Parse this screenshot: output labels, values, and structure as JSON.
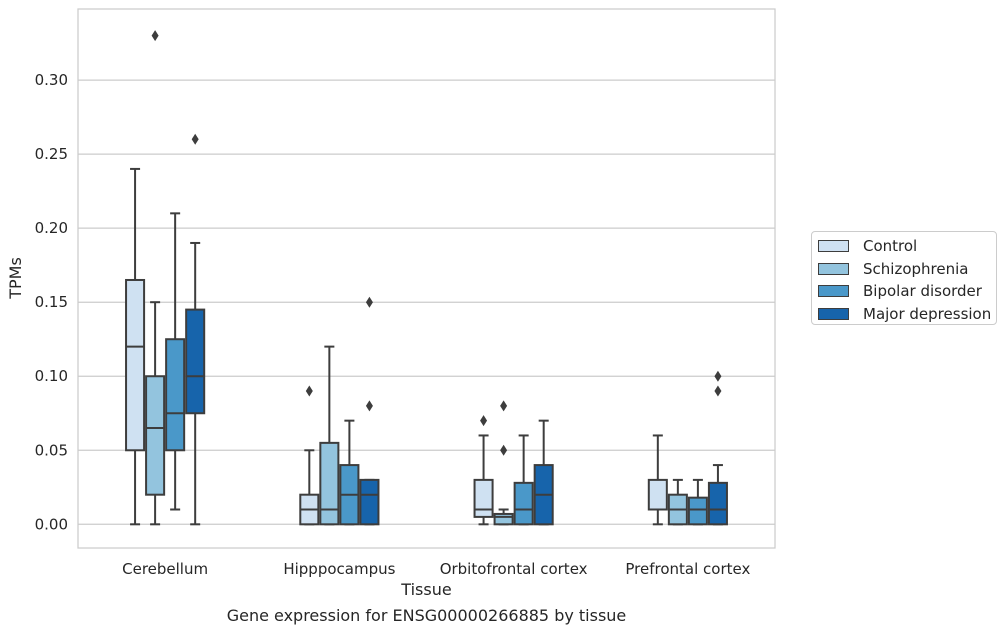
{
  "chart_data": {
    "type": "boxplot",
    "xlabel": "Tissue",
    "ylabel": "TPMs",
    "ylim": [
      -0.016,
      0.348
    ],
    "yticks": [
      "0.00",
      "0.05",
      "0.10",
      "0.15",
      "0.20",
      "0.25",
      "0.30"
    ],
    "grid": "horizontal",
    "legend_placement": "right",
    "categories": [
      "Cerebellum",
      "Hipppocampus",
      "Orbitofrontal cortex",
      "Prefrontal cortex"
    ],
    "series": [
      {
        "name": "Control",
        "color": "#cfe1f2",
        "boxes": [
          {
            "whisker_low": 0.0,
            "q1": 0.05,
            "median": 0.12,
            "q3": 0.165,
            "whisker_high": 0.24,
            "outliers": []
          },
          {
            "whisker_low": 0.0,
            "q1": 0.0,
            "median": 0.01,
            "q3": 0.02,
            "whisker_high": 0.05,
            "outliers": [
              0.09
            ]
          },
          {
            "whisker_low": 0.0,
            "q1": 0.005,
            "median": 0.01,
            "q3": 0.03,
            "whisker_high": 0.06,
            "outliers": [
              0.07
            ]
          },
          {
            "whisker_low": 0.0,
            "q1": 0.01,
            "median": 0.01,
            "q3": 0.03,
            "whisker_high": 0.06,
            "outliers": []
          }
        ]
      },
      {
        "name": "Schizophrenia",
        "color": "#93c4de",
        "boxes": [
          {
            "whisker_low": 0.0,
            "q1": 0.02,
            "median": 0.065,
            "q3": 0.1,
            "whisker_high": 0.15,
            "outliers": [
              0.33
            ]
          },
          {
            "whisker_low": 0.0,
            "q1": 0.0,
            "median": 0.01,
            "q3": 0.055,
            "whisker_high": 0.12,
            "outliers": []
          },
          {
            "whisker_low": 0.0,
            "q1": 0.0,
            "median": 0.005,
            "q3": 0.007,
            "whisker_high": 0.01,
            "outliers": [
              0.05,
              0.08
            ]
          },
          {
            "whisker_low": 0.0,
            "q1": 0.0,
            "median": 0.01,
            "q3": 0.02,
            "whisker_high": 0.03,
            "outliers": []
          }
        ]
      },
      {
        "name": "Bipolar disorder",
        "color": "#4a98c9",
        "boxes": [
          {
            "whisker_low": 0.01,
            "q1": 0.05,
            "median": 0.075,
            "q3": 0.125,
            "whisker_high": 0.21,
            "outliers": []
          },
          {
            "whisker_low": 0.0,
            "q1": 0.0,
            "median": 0.02,
            "q3": 0.04,
            "whisker_high": 0.07,
            "outliers": []
          },
          {
            "whisker_low": 0.0,
            "q1": 0.0,
            "median": 0.01,
            "q3": 0.028,
            "whisker_high": 0.06,
            "outliers": []
          },
          {
            "whisker_low": 0.0,
            "q1": 0.0,
            "median": 0.01,
            "q3": 0.018,
            "whisker_high": 0.03,
            "outliers": []
          }
        ]
      },
      {
        "name": "Major depression",
        "color": "#1764ab",
        "boxes": [
          {
            "whisker_low": 0.0,
            "q1": 0.075,
            "median": 0.1,
            "q3": 0.145,
            "whisker_high": 0.19,
            "outliers": [
              0.26
            ]
          },
          {
            "whisker_low": 0.0,
            "q1": 0.0,
            "median": 0.02,
            "q3": 0.03,
            "whisker_high": 0.03,
            "outliers": [
              0.08,
              0.15
            ]
          },
          {
            "whisker_low": 0.0,
            "q1": 0.0,
            "median": 0.02,
            "q3": 0.04,
            "whisker_high": 0.07,
            "outliers": []
          },
          {
            "whisker_low": 0.0,
            "q1": 0.0,
            "median": 0.01,
            "q3": 0.028,
            "whisker_high": 0.04,
            "outliers": [
              0.09,
              0.1
            ]
          }
        ]
      }
    ]
  },
  "caption": "Gene expression for ENSG00000266885 by tissue"
}
